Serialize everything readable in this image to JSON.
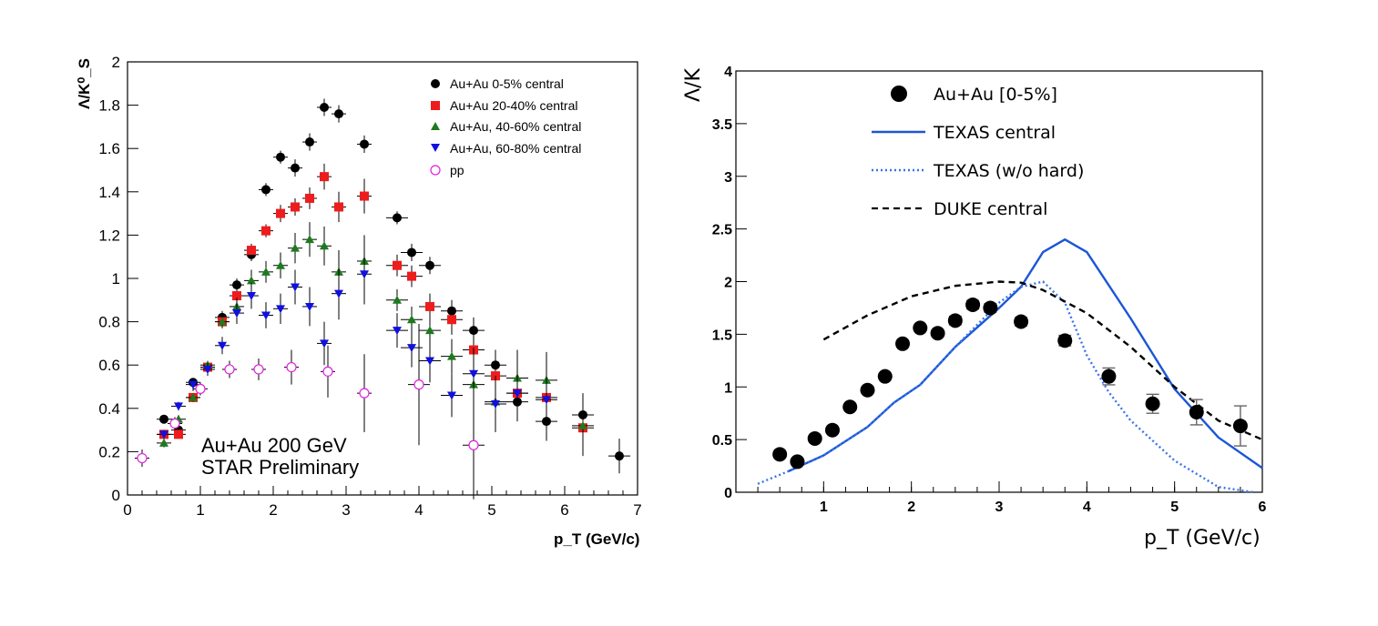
{
  "chart_data": [
    {
      "type": "scatter",
      "xlabel": "p_T (GeV/c)",
      "ylabel": "Λ/K⁰_S",
      "xlim": [
        0,
        7
      ],
      "ylim": [
        0,
        2
      ],
      "xticks": [
        "0",
        "1",
        "2",
        "3",
        "4",
        "5",
        "6",
        "7"
      ],
      "yticks": [
        "0",
        "0.2",
        "0.4",
        "0.6",
        "0.8",
        "1",
        "1.2",
        "1.4",
        "1.6",
        "1.8",
        "2"
      ],
      "annotation": [
        "Au+Au 200 GeV",
        "STAR Preliminary"
      ],
      "series": [
        {
          "name": "Au+Au 0-5% central",
          "marker": "circle-filled",
          "color": "#000000",
          "x": [
            0.5,
            0.7,
            0.9,
            1.1,
            1.3,
            1.5,
            1.7,
            1.9,
            2.1,
            2.3,
            2.5,
            2.7,
            2.9,
            3.25,
            3.7,
            3.9,
            4.15,
            4.45,
            4.75,
            5.05,
            5.35,
            5.75,
            6.25,
            6.75
          ],
          "y": [
            0.35,
            0.3,
            0.52,
            0.59,
            0.82,
            0.97,
            1.11,
            1.41,
            1.56,
            1.51,
            1.63,
            1.79,
            1.76,
            1.62,
            1.28,
            1.12,
            1.06,
            0.85,
            0.76,
            0.6,
            0.43,
            0.34,
            0.37,
            0.18
          ],
          "err": [
            0.02,
            0.02,
            0.02,
            0.02,
            0.03,
            0.03,
            0.03,
            0.03,
            0.03,
            0.04,
            0.04,
            0.04,
            0.04,
            0.04,
            0.03,
            0.04,
            0.04,
            0.05,
            0.06,
            0.07,
            0.08,
            0.09,
            0.1,
            0.08
          ]
        },
        {
          "name": "Au+Au 20-40% central",
          "marker": "square-filled",
          "color": "#ee1c1c",
          "x": [
            0.5,
            0.7,
            0.9,
            1.1,
            1.3,
            1.5,
            1.7,
            1.9,
            2.1,
            2.3,
            2.5,
            2.7,
            2.9,
            3.25,
            3.7,
            3.9,
            4.15,
            4.45,
            4.75,
            5.05,
            5.35,
            5.75,
            6.25
          ],
          "y": [
            0.28,
            0.28,
            0.45,
            0.59,
            0.8,
            0.92,
            1.13,
            1.22,
            1.3,
            1.33,
            1.37,
            1.47,
            1.33,
            1.38,
            1.06,
            1.01,
            0.87,
            0.81,
            0.67,
            0.55,
            0.47,
            0.45,
            0.31
          ],
          "err": [
            0.02,
            0.02,
            0.02,
            0.02,
            0.03,
            0.03,
            0.03,
            0.03,
            0.04,
            0.04,
            0.05,
            0.06,
            0.07,
            0.08,
            0.05,
            0.05,
            0.06,
            0.07,
            0.08,
            0.1,
            0.1,
            0.1,
            0.1
          ]
        },
        {
          "name": "Au+Au, 40-60% central",
          "marker": "triangle-up-filled",
          "color": "#1e7a1e",
          "x": [
            0.5,
            0.7,
            0.9,
            1.1,
            1.3,
            1.5,
            1.7,
            1.9,
            2.1,
            2.3,
            2.5,
            2.7,
            2.9,
            3.25,
            3.7,
            3.9,
            4.15,
            4.45,
            4.75,
            5.05,
            5.35,
            5.75,
            6.25
          ],
          "y": [
            0.24,
            0.35,
            0.45,
            0.6,
            0.8,
            0.87,
            0.99,
            1.03,
            1.06,
            1.14,
            1.18,
            1.15,
            1.03,
            1.08,
            0.9,
            0.81,
            0.76,
            0.64,
            0.51,
            0.43,
            0.54,
            0.53,
            0.32
          ],
          "err": [
            0.02,
            0.02,
            0.02,
            0.02,
            0.03,
            0.04,
            0.05,
            0.05,
            0.06,
            0.07,
            0.08,
            0.09,
            0.1,
            0.12,
            0.05,
            0.06,
            0.07,
            0.08,
            0.1,
            0.12,
            0.13,
            0.13,
            0.14
          ]
        },
        {
          "name": "Au+Au, 60-80% central",
          "marker": "triangle-down-filled",
          "color": "#1010e0",
          "x": [
            0.5,
            0.7,
            0.9,
            1.1,
            1.3,
            1.5,
            1.7,
            1.9,
            2.1,
            2.3,
            2.5,
            2.7,
            2.9,
            3.25,
            3.7,
            3.9,
            4.15,
            4.45,
            4.75,
            5.05,
            5.35,
            5.75
          ],
          "y": [
            0.28,
            0.41,
            0.51,
            0.58,
            0.69,
            0.84,
            0.92,
            0.83,
            0.86,
            0.96,
            0.87,
            0.7,
            0.93,
            1.02,
            0.76,
            0.68,
            0.62,
            0.46,
            0.56,
            0.42,
            0.47,
            0.44
          ],
          "err": [
            0.02,
            0.02,
            0.03,
            0.03,
            0.04,
            0.05,
            0.06,
            0.06,
            0.07,
            0.08,
            0.09,
            0.1,
            0.12,
            0.14,
            0.08,
            0.09,
            0.1,
            0.1,
            0.12,
            0.13,
            0.13,
            0.13
          ]
        },
        {
          "name": "pp",
          "marker": "circle-open",
          "color": "#e020e0",
          "x": [
            0.2,
            0.65,
            1.0,
            1.4,
            1.8,
            2.25,
            2.75,
            3.25,
            4.0,
            4.75
          ],
          "y": [
            0.17,
            0.33,
            0.49,
            0.58,
            0.58,
            0.59,
            0.57,
            0.47,
            0.51,
            0.23
          ],
          "err": [
            0.04,
            0.03,
            0.03,
            0.04,
            0.05,
            0.08,
            0.12,
            0.18,
            0.28,
            0.25
          ]
        }
      ]
    },
    {
      "type": "scatter",
      "xlabel": "p_T (GeV/c)",
      "ylabel": "Λ/K",
      "xlim": [
        0,
        6
      ],
      "ylim": [
        0,
        4
      ],
      "xticks": [
        "1",
        "2",
        "3",
        "4",
        "5",
        "6"
      ],
      "yticks": [
        "0",
        "0.5",
        "1",
        "1.5",
        "2",
        "2.5",
        "3",
        "3.5",
        "4"
      ],
      "series": [
        {
          "name": "Au+Au [0-5%]",
          "marker": "circle-filled",
          "color": "#000000",
          "x": [
            0.5,
            0.7,
            0.9,
            1.1,
            1.3,
            1.5,
            1.7,
            1.9,
            2.1,
            2.3,
            2.5,
            2.7,
            2.9,
            3.25,
            3.75,
            4.25,
            4.75,
            5.25,
            5.75
          ],
          "y": [
            0.36,
            0.29,
            0.51,
            0.59,
            0.81,
            0.97,
            1.1,
            1.41,
            1.56,
            1.51,
            1.63,
            1.78,
            1.75,
            1.62,
            1.44,
            1.1,
            0.84,
            0.76,
            0.63
          ],
          "err": [
            0.02,
            0.02,
            0.02,
            0.02,
            0.02,
            0.03,
            0.03,
            0.03,
            0.03,
            0.03,
            0.04,
            0.04,
            0.04,
            0.04,
            0.05,
            0.08,
            0.09,
            0.12,
            0.19
          ]
        },
        {
          "name": "TEXAS central",
          "style": "solid",
          "color": "#1a56d6",
          "x": [
            0.6,
            1.0,
            1.5,
            1.8,
            2.1,
            2.5,
            3.0,
            3.25,
            3.5,
            3.75,
            4.0,
            4.5,
            5.0,
            5.5,
            6.0
          ],
          "y": [
            0.2,
            0.35,
            0.62,
            0.85,
            1.02,
            1.38,
            1.75,
            1.95,
            2.28,
            2.4,
            2.28,
            1.65,
            0.98,
            0.52,
            0.23
          ]
        },
        {
          "name": "TEXAS (w/o hard)",
          "style": "dotted",
          "color": "#3a74e8",
          "x": [
            0.25,
            0.6,
            1.0,
            1.5,
            1.8,
            2.1,
            2.5,
            3.0,
            3.25,
            3.5,
            3.75,
            4.0,
            4.25,
            4.5,
            5.0,
            5.5,
            5.9
          ],
          "y": [
            0.08,
            0.2,
            0.35,
            0.62,
            0.85,
            1.02,
            1.38,
            1.8,
            1.95,
            2.0,
            1.8,
            1.3,
            0.95,
            0.68,
            0.3,
            0.05,
            0.0
          ]
        },
        {
          "name": "DUKE  central",
          "style": "dashed",
          "color": "#000000",
          "x": [
            1.0,
            1.5,
            2.0,
            2.5,
            3.0,
            3.25,
            3.5,
            4.0,
            4.5,
            5.0,
            5.5,
            6.0
          ],
          "y": [
            1.45,
            1.68,
            1.86,
            1.96,
            2.0,
            1.99,
            1.92,
            1.7,
            1.38,
            1.0,
            0.68,
            0.5
          ]
        }
      ]
    }
  ]
}
